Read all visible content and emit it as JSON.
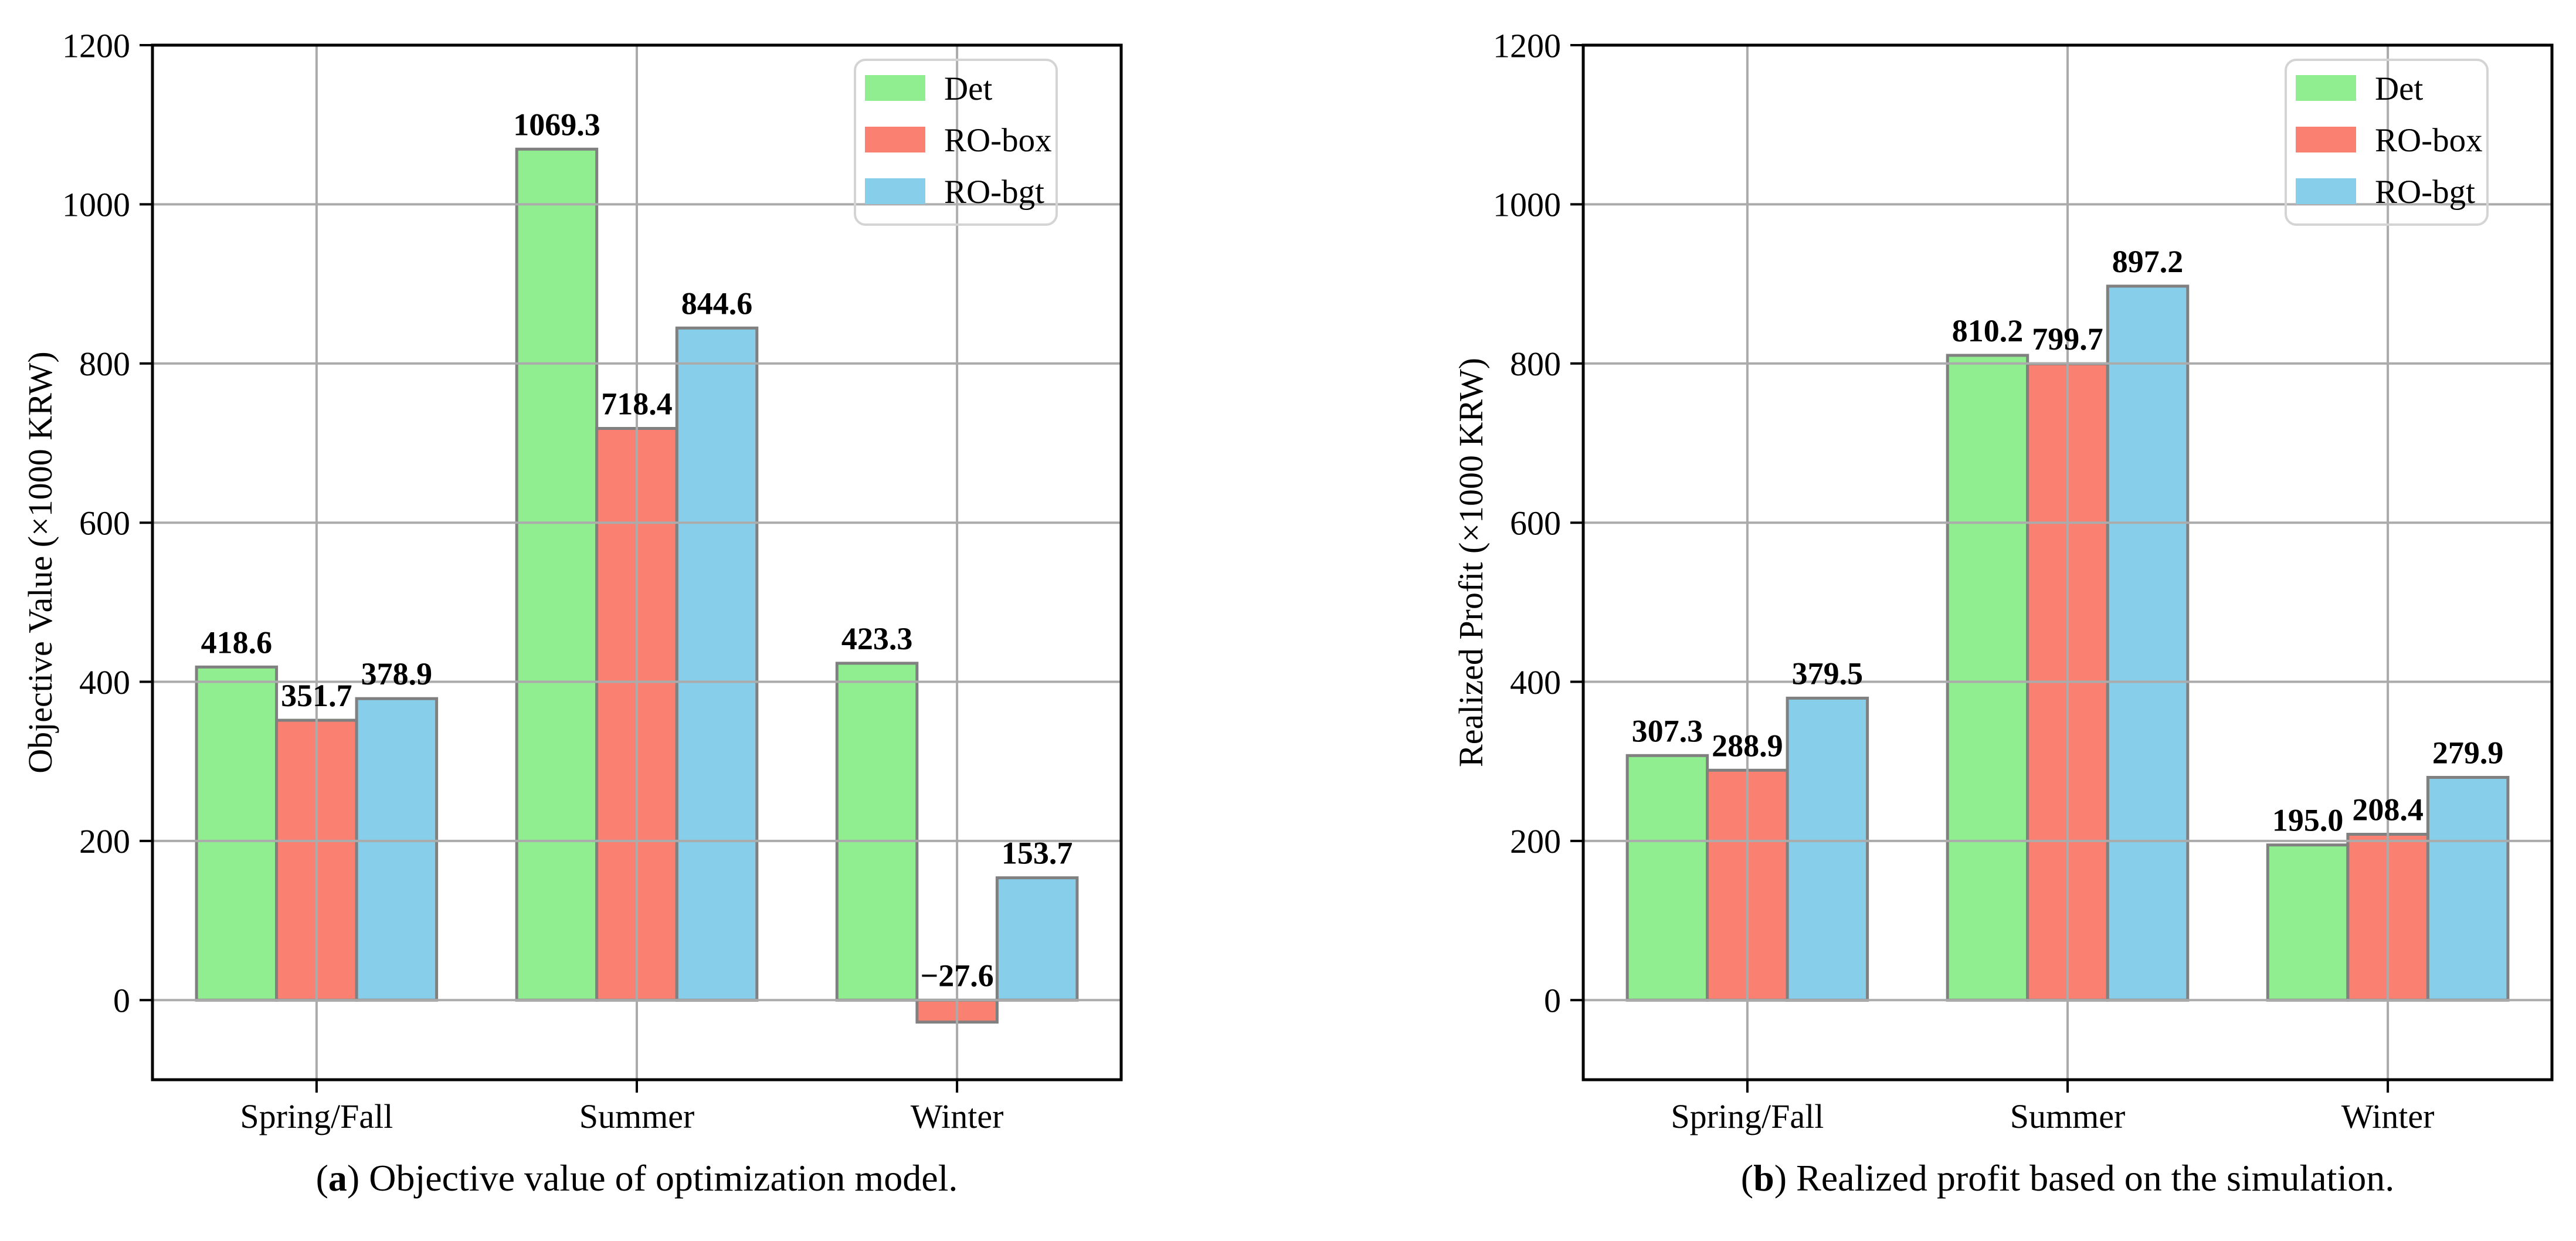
{
  "figure": {
    "background": "#ffffff"
  },
  "style": {
    "bar_edge": "#808080",
    "grid_color": "#ababab",
    "spine_color": "#000000",
    "legend_border": "#d4d4d4",
    "text_color": "#000000"
  },
  "chart_data": [
    {
      "type": "bar",
      "caption": {
        "pre": "(",
        "letter": "a",
        "post": ") Objective value of optimization model."
      },
      "xlabel": "",
      "ylabel": "Objective Value (×1000 KRW)",
      "categories": [
        "Spring/Fall",
        "Summer",
        "Winter"
      ],
      "series": [
        {
          "name": "Det",
          "color": "#90EE90",
          "values": [
            418.6,
            1069.3,
            423.3
          ]
        },
        {
          "name": "RO-box",
          "color": "#FA8072",
          "values": [
            351.7,
            718.4,
            -27.6
          ]
        },
        {
          "name": "RO-bgt",
          "color": "#87CEEB",
          "values": [
            378.9,
            844.6,
            153.7
          ]
        }
      ],
      "ylim": [
        -100,
        1200
      ],
      "yticks": [
        0,
        200,
        400,
        600,
        800,
        1000,
        1200
      ],
      "bar_width": 0.25,
      "grid": true,
      "legend_position": "upper right"
    },
    {
      "type": "bar",
      "caption": {
        "pre": "(",
        "letter": "b",
        "post": ") Realized profit based on the simulation."
      },
      "xlabel": "",
      "ylabel": "Realized Profit (×1000 KRW)",
      "categories": [
        "Spring/Fall",
        "Summer",
        "Winter"
      ],
      "series": [
        {
          "name": "Det",
          "color": "#90EE90",
          "values": [
            307.3,
            810.2,
            195.0
          ]
        },
        {
          "name": "RO-box",
          "color": "#FA8072",
          "values": [
            288.9,
            799.7,
            208.4
          ]
        },
        {
          "name": "RO-bgt",
          "color": "#87CEEB",
          "values": [
            379.5,
            897.2,
            279.9
          ]
        }
      ],
      "ylim": [
        -100,
        1200
      ],
      "yticks": [
        0,
        200,
        400,
        600,
        800,
        1000,
        1200
      ],
      "bar_width": 0.25,
      "grid": true,
      "legend_position": "upper right"
    }
  ]
}
